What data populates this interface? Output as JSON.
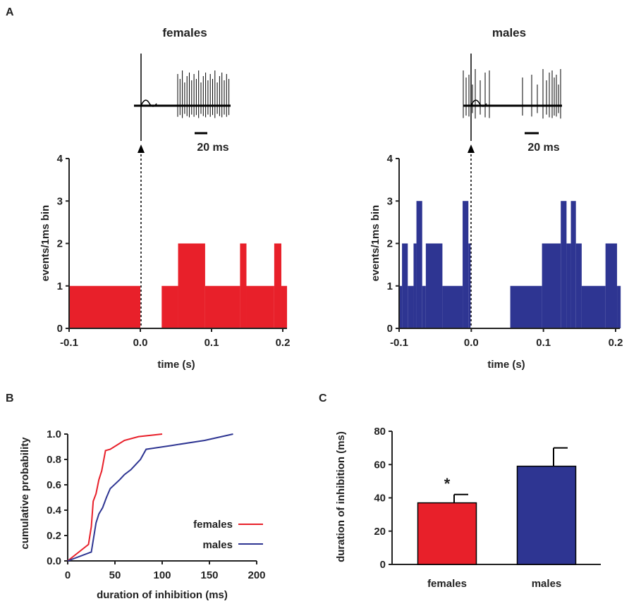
{
  "panels": {
    "a": "A",
    "b": "B",
    "c": "C"
  },
  "colors": {
    "females": "#e8202a",
    "males": "#2e3592",
    "axis": "#222222"
  },
  "chart_data": [
    {
      "id": "A-females",
      "type": "bar",
      "title": "females",
      "xlabel": "time (s)",
      "ylabel": "events/1ms bin",
      "xlim": [
        -0.1,
        0.2
      ],
      "ylim": [
        0,
        4
      ],
      "xticks": [
        "-0.1",
        "0.0",
        "0.1",
        "0.2"
      ],
      "yticks": [
        "0",
        "1",
        "2",
        "3",
        "4"
      ],
      "stimulus_time": 0.0,
      "trace_scale_bar": "20 ms",
      "histogram": [
        {
          "x0": -0.1,
          "x1": 0.0,
          "count": 1
        },
        {
          "x0": 0.03,
          "x1": 0.053,
          "count": 1
        },
        {
          "x0": 0.053,
          "x1": 0.091,
          "count": 2
        },
        {
          "x0": 0.091,
          "x1": 0.14,
          "count": 1
        },
        {
          "x0": 0.14,
          "x1": 0.149,
          "count": 2
        },
        {
          "x0": 0.149,
          "x1": 0.188,
          "count": 1
        },
        {
          "x0": 0.188,
          "x1": 0.198,
          "count": 2
        },
        {
          "x0": 0.198,
          "x1": 0.206,
          "count": 1
        }
      ]
    },
    {
      "id": "A-males",
      "type": "bar",
      "title": "males",
      "xlabel": "time (s)",
      "ylabel": "events/1ms bin",
      "xlim": [
        -0.1,
        0.2
      ],
      "ylim": [
        0,
        4
      ],
      "xticks": [
        "-0.1",
        "0.0",
        "0.1",
        "0.2"
      ],
      "yticks": [
        "0",
        "1",
        "2",
        "3",
        "4"
      ],
      "stimulus_time": 0.0,
      "trace_scale_bar": "20 ms",
      "histogram": [
        {
          "x0": -0.1,
          "x1": -0.096,
          "count": 1
        },
        {
          "x0": -0.096,
          "x1": -0.088,
          "count": 2
        },
        {
          "x0": -0.088,
          "x1": -0.08,
          "count": 1
        },
        {
          "x0": -0.08,
          "x1": -0.076,
          "count": 2
        },
        {
          "x0": -0.076,
          "x1": -0.068,
          "count": 3
        },
        {
          "x0": -0.068,
          "x1": -0.063,
          "count": 1
        },
        {
          "x0": -0.063,
          "x1": -0.04,
          "count": 2
        },
        {
          "x0": -0.04,
          "x1": -0.012,
          "count": 1
        },
        {
          "x0": -0.012,
          "x1": -0.004,
          "count": 3
        },
        {
          "x0": -0.004,
          "x1": -0.001,
          "count": 2
        },
        {
          "x0": 0.054,
          "x1": 0.098,
          "count": 1
        },
        {
          "x0": 0.098,
          "x1": 0.124,
          "count": 2
        },
        {
          "x0": 0.124,
          "x1": 0.132,
          "count": 3
        },
        {
          "x0": 0.132,
          "x1": 0.138,
          "count": 2
        },
        {
          "x0": 0.138,
          "x1": 0.145,
          "count": 3
        },
        {
          "x0": 0.145,
          "x1": 0.153,
          "count": 2
        },
        {
          "x0": 0.153,
          "x1": 0.186,
          "count": 1
        },
        {
          "x0": 0.186,
          "x1": 0.202,
          "count": 2
        },
        {
          "x0": 0.202,
          "x1": 0.207,
          "count": 1
        }
      ]
    },
    {
      "id": "B",
      "type": "line",
      "title": "",
      "xlabel": "duration of inhibition (ms)",
      "ylabel": "cumulative probability",
      "xlim": [
        0,
        200
      ],
      "ylim": [
        0,
        1.0
      ],
      "xticks": [
        "0",
        "50",
        "100",
        "150",
        "200"
      ],
      "yticks": [
        "0.0",
        "0.2",
        "0.4",
        "0.6",
        "0.8",
        "1.0"
      ],
      "legend": "bottom-right",
      "series": [
        {
          "name": "females",
          "x": [
            0,
            22,
            25,
            27,
            30,
            33,
            36,
            40,
            45,
            60,
            75,
            100
          ],
          "y": [
            0,
            0.13,
            0.27,
            0.47,
            0.53,
            0.64,
            0.71,
            0.87,
            0.88,
            0.95,
            0.98,
            1.0
          ]
        },
        {
          "name": "males",
          "x": [
            0,
            25,
            30,
            33,
            37,
            41,
            45,
            55,
            60,
            67,
            72,
            77,
            83,
            110,
            145,
            175
          ],
          "y": [
            0,
            0.07,
            0.3,
            0.37,
            0.42,
            0.5,
            0.57,
            0.64,
            0.68,
            0.72,
            0.76,
            0.8,
            0.88,
            0.91,
            0.95,
            1.0
          ]
        }
      ]
    },
    {
      "id": "C",
      "type": "bar",
      "title": "",
      "xlabel": "",
      "ylabel": "duration of inhibition (ms)",
      "categories": [
        "females",
        "males"
      ],
      "values": [
        37,
        59
      ],
      "errors": [
        5,
        11
      ],
      "significance": [
        "*",
        ""
      ],
      "ylim": [
        0,
        80
      ],
      "yticks": [
        "0",
        "20",
        "40",
        "60",
        "80"
      ]
    }
  ]
}
